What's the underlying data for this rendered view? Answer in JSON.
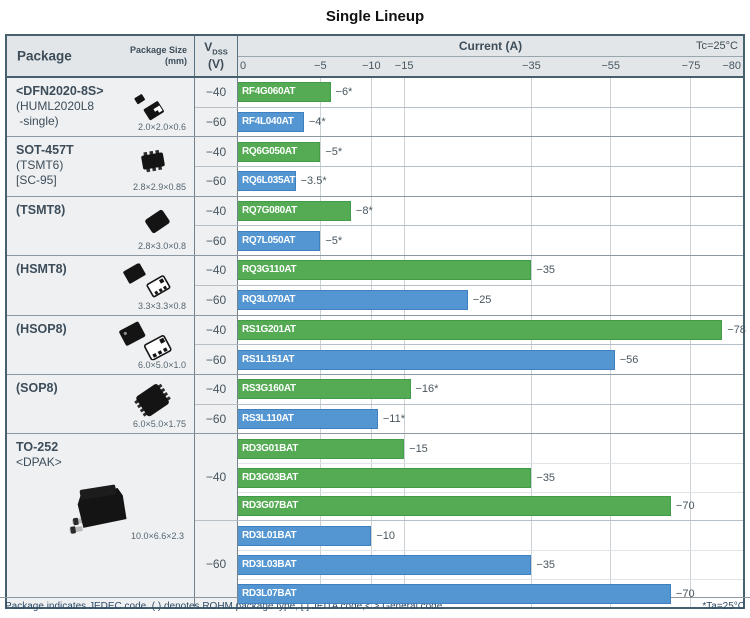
{
  "title": "Single Lineup",
  "header": {
    "package": "Package",
    "package_size": "Package Size",
    "package_size_unit": "(mm)",
    "vdss": "V",
    "vdss_sub": "DSS",
    "vdss_unit": "(V)",
    "current": "Current (A)",
    "tc": "Tc=25°C"
  },
  "axis": {
    "ticks": [
      {
        "v": 0,
        "label": "0"
      },
      {
        "v": 5,
        "label": "−5"
      },
      {
        "v": 10,
        "label": "−10"
      },
      {
        "v": 15,
        "label": "−15"
      },
      {
        "v": 35,
        "label": "−35"
      },
      {
        "v": 55,
        "label": "−55"
      },
      {
        "v": 75,
        "label": "−75"
      },
      {
        "v": 80,
        "label": "−80"
      }
    ],
    "gridlines": [
      5,
      10,
      15,
      35,
      55,
      75
    ],
    "breakpoints": [
      [
        0,
        0
      ],
      [
        5,
        0.163
      ],
      [
        10,
        0.264
      ],
      [
        15,
        0.329
      ],
      [
        35,
        0.581
      ],
      [
        55,
        0.738
      ],
      [
        75,
        0.897
      ],
      [
        80,
        1
      ]
    ]
  },
  "colors": {
    "green": "#54ab54",
    "blue": "#5496d2",
    "header_bg": "#e2e6e9",
    "border": "#46606e"
  },
  "groups": [
    {
      "icon": "dfn2020",
      "size": "2.0×2.0×0.6",
      "lines": [
        {
          "t": "<DFN2020-8S>",
          "b": 1
        },
        {
          "t": "(HUML2020L8",
          "b": 0
        },
        {
          "t": " -single)",
          "b": 0
        }
      ],
      "subs": [
        {
          "vdss": "−40",
          "bars": [
            {
              "part": "RF4G060AT",
              "value": 6,
              "label": "−6*",
              "c": "g"
            }
          ]
        },
        {
          "vdss": "−60",
          "bars": [
            {
              "part": "RF4L040AT",
              "value": 4,
              "label": "−4*",
              "c": "b"
            }
          ]
        }
      ]
    },
    {
      "icon": "sot457t",
      "size": "2.8×2.9×0.85",
      "lines": [
        {
          "t": "SOT-457T",
          "b": 1
        },
        {
          "t": "(TSMT6)",
          "b": 0
        },
        {
          "t": "[SC-95]",
          "b": 0
        }
      ],
      "subs": [
        {
          "vdss": "−40",
          "bars": [
            {
              "part": "RQ6G050AT",
              "value": 5,
              "label": "−5*",
              "c": "g"
            }
          ]
        },
        {
          "vdss": "−60",
          "bars": [
            {
              "part": "RQ6L035AT",
              "value": 3.5,
              "label": "−3.5*",
              "c": "b"
            }
          ]
        }
      ]
    },
    {
      "icon": "tsmt8",
      "size": "2.8×3.0×0.8",
      "lines": [
        {
          "t": "(TSMT8)",
          "b": 1
        }
      ],
      "subs": [
        {
          "vdss": "−40",
          "bars": [
            {
              "part": "RQ7G080AT",
              "value": 8,
              "label": "−8*",
              "c": "g"
            }
          ]
        },
        {
          "vdss": "−60",
          "bars": [
            {
              "part": "RQ7L050AT",
              "value": 5,
              "label": "−5*",
              "c": "b"
            }
          ]
        }
      ]
    },
    {
      "icon": "hsmt8",
      "size": "3.3×3.3×0.8",
      "lines": [
        {
          "t": "(HSMT8)",
          "b": 1
        }
      ],
      "subs": [
        {
          "vdss": "−40",
          "bars": [
            {
              "part": "RQ3G110AT",
              "value": 35,
              "label": "−35",
              "c": "g"
            }
          ]
        },
        {
          "vdss": "−60",
          "bars": [
            {
              "part": "RQ3L070AT",
              "value": 25,
              "label": "−25",
              "c": "b"
            }
          ]
        }
      ]
    },
    {
      "icon": "hsop8",
      "size": "6.0×5.0×1.0",
      "lines": [
        {
          "t": "(HSOP8)",
          "b": 1
        }
      ],
      "subs": [
        {
          "vdss": "−40",
          "bars": [
            {
              "part": "RS1G201AT",
              "value": 78,
              "label": "−78",
              "c": "g"
            }
          ]
        },
        {
          "vdss": "−60",
          "bars": [
            {
              "part": "RS1L151AT",
              "value": 56,
              "label": "−56",
              "c": "b"
            }
          ]
        }
      ]
    },
    {
      "icon": "sop8",
      "size": "6.0×5.0×1.75",
      "lines": [
        {
          "t": "(SOP8)",
          "b": 1
        }
      ],
      "subs": [
        {
          "vdss": "−40",
          "bars": [
            {
              "part": "RS3G160AT",
              "value": 16,
              "label": "−16*",
              "c": "g"
            }
          ]
        },
        {
          "vdss": "−60",
          "bars": [
            {
              "part": "RS3L110AT",
              "value": 11,
              "label": "−11*",
              "c": "b"
            }
          ]
        }
      ]
    },
    {
      "icon": "to252",
      "size": "10.0×6.6×2.3",
      "lines": [
        {
          "t": "TO-252",
          "b": 1
        },
        {
          "t": "<DPAK>",
          "b": 0
        }
      ],
      "subs": [
        {
          "vdss": "−40",
          "bars": [
            {
              "part": "RD3G01BAT",
              "value": 15,
              "label": "−15",
              "c": "g"
            },
            {
              "part": "RD3G03BAT",
              "value": 35,
              "label": "−35",
              "c": "g"
            },
            {
              "part": "RD3G07BAT",
              "value": 70,
              "label": "−70",
              "c": "g"
            }
          ]
        },
        {
          "vdss": "−60",
          "bars": [
            {
              "part": "RD3L01BAT",
              "value": 10,
              "label": "−10",
              "c": "b"
            },
            {
              "part": "RD3L03BAT",
              "value": 35,
              "label": "−35",
              "c": "b"
            },
            {
              "part": "RD3L07BAT",
              "value": 70,
              "label": "−70",
              "c": "b"
            }
          ]
        }
      ]
    }
  ],
  "footer": {
    "left": "Package indicates JEDEC code. ( ) denotes ROHM package type, [ ] JEITA code,< > General code.",
    "right": "*Ta=25°C"
  },
  "chart_data": {
    "type": "bar",
    "orientation": "horizontal",
    "title": "Single Lineup",
    "xlabel": "Current (A)",
    "condition": "Tc=25°C",
    "note": "* denotes Ta=25°C",
    "x_ticks": [
      0,
      -5,
      -10,
      -15,
      -35,
      -55,
      -75,
      -80
    ],
    "axis_nonlinear": true,
    "legend": [
      {
        "name": "VDSS −40 V",
        "color": "#54ab54"
      },
      {
        "name": "VDSS −60 V",
        "color": "#5496d2"
      }
    ],
    "series": [
      {
        "part": "RF4G060AT",
        "package": "<DFN2020-8S> (HUML2020L8 -single)",
        "package_size_mm": "2.0×2.0×0.6",
        "vdss_v": -40,
        "current_a": -6,
        "starred": true
      },
      {
        "part": "RF4L040AT",
        "package": "<DFN2020-8S> (HUML2020L8 -single)",
        "package_size_mm": "2.0×2.0×0.6",
        "vdss_v": -60,
        "current_a": -4,
        "starred": true
      },
      {
        "part": "RQ6G050AT",
        "package": "SOT-457T (TSMT6) [SC-95]",
        "package_size_mm": "2.8×2.9×0.85",
        "vdss_v": -40,
        "current_a": -5,
        "starred": true
      },
      {
        "part": "RQ6L035AT",
        "package": "SOT-457T (TSMT6) [SC-95]",
        "package_size_mm": "2.8×2.9×0.85",
        "vdss_v": -60,
        "current_a": -3.5,
        "starred": true
      },
      {
        "part": "RQ7G080AT",
        "package": "(TSMT8)",
        "package_size_mm": "2.8×3.0×0.8",
        "vdss_v": -40,
        "current_a": -8,
        "starred": true
      },
      {
        "part": "RQ7L050AT",
        "package": "(TSMT8)",
        "package_size_mm": "2.8×3.0×0.8",
        "vdss_v": -60,
        "current_a": -5,
        "starred": true
      },
      {
        "part": "RQ3G110AT",
        "package": "(HSMT8)",
        "package_size_mm": "3.3×3.3×0.8",
        "vdss_v": -40,
        "current_a": -35,
        "starred": false
      },
      {
        "part": "RQ3L070AT",
        "package": "(HSMT8)",
        "package_size_mm": "3.3×3.3×0.8",
        "vdss_v": -60,
        "current_a": -25,
        "starred": false
      },
      {
        "part": "RS1G201AT",
        "package": "(HSOP8)",
        "package_size_mm": "6.0×5.0×1.0",
        "vdss_v": -40,
        "current_a": -78,
        "starred": false
      },
      {
        "part": "RS1L151AT",
        "package": "(HSOP8)",
        "package_size_mm": "6.0×5.0×1.0",
        "vdss_v": -60,
        "current_a": -56,
        "starred": false
      },
      {
        "part": "RS3G160AT",
        "package": "(SOP8)",
        "package_size_mm": "6.0×5.0×1.75",
        "vdss_v": -40,
        "current_a": -16,
        "starred": true
      },
      {
        "part": "RS3L110AT",
        "package": "(SOP8)",
        "package_size_mm": "6.0×5.0×1.75",
        "vdss_v": -60,
        "current_a": -11,
        "starred": true
      },
      {
        "part": "RD3G01BAT",
        "package": "TO-252 <DPAK>",
        "package_size_mm": "10.0×6.6×2.3",
        "vdss_v": -40,
        "current_a": -15,
        "starred": false
      },
      {
        "part": "RD3G03BAT",
        "package": "TO-252 <DPAK>",
        "package_size_mm": "10.0×6.6×2.3",
        "vdss_v": -40,
        "current_a": -35,
        "starred": false
      },
      {
        "part": "RD3G07BAT",
        "package": "TO-252 <DPAK>",
        "package_size_mm": "10.0×6.6×2.3",
        "vdss_v": -40,
        "current_a": -70,
        "starred": false
      },
      {
        "part": "RD3L01BAT",
        "package": "TO-252 <DPAK>",
        "package_size_mm": "10.0×6.6×2.3",
        "vdss_v": -60,
        "current_a": -10,
        "starred": false
      },
      {
        "part": "RD3L03BAT",
        "package": "TO-252 <DPAK>",
        "package_size_mm": "10.0×6.6×2.3",
        "vdss_v": -60,
        "current_a": -35,
        "starred": false
      },
      {
        "part": "RD3L07BAT",
        "package": "TO-252 <DPAK>",
        "package_size_mm": "10.0×6.6×2.3",
        "vdss_v": -60,
        "current_a": -70,
        "starred": false
      }
    ]
  }
}
